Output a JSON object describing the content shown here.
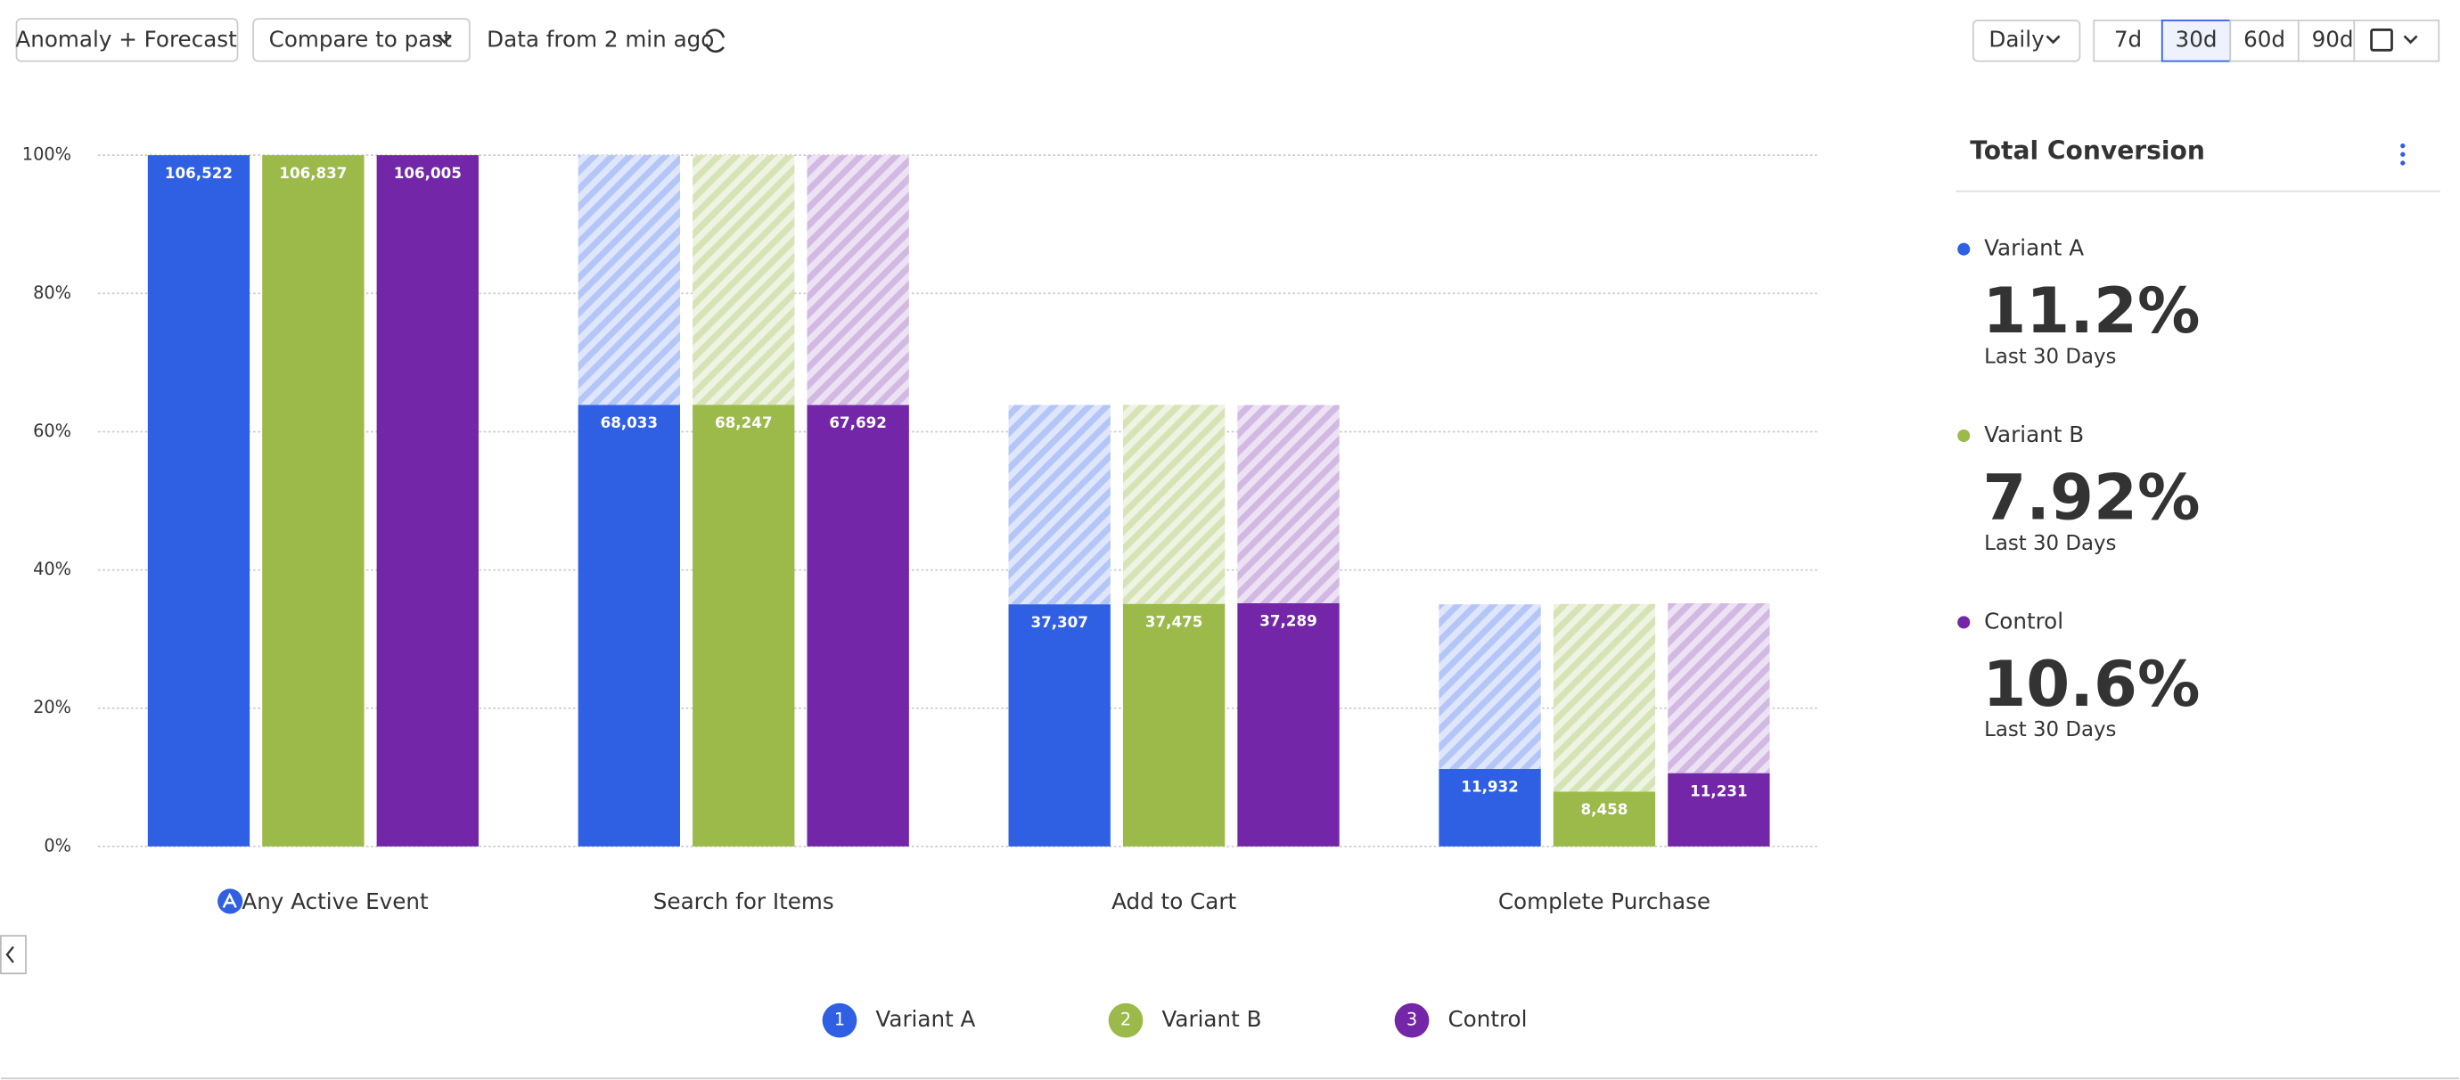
{
  "toolbar": {
    "anomaly": "Anomaly + Forecast",
    "compare": "Compare to past",
    "freshness": "Data from 2 min ago",
    "interval": "Daily",
    "ranges": [
      "7d",
      "30d",
      "60d",
      "90d"
    ],
    "selected_range": "30d"
  },
  "panel": {
    "title": "Total Conversion",
    "items": [
      {
        "name": "Variant A",
        "value": 11.2,
        "label": "11.2%",
        "period": "Last 30 Days",
        "color": "#2f5fe3"
      },
      {
        "name": "Variant B",
        "value": 7.92,
        "label": "7.92%",
        "period": "Last 30 Days",
        "color": "#9bba4a"
      },
      {
        "name": "Control",
        "value": 10.6,
        "label": "10.6%",
        "period": "Last 30 Days",
        "color": "#7326a8"
      }
    ]
  },
  "chart_data": {
    "type": "funnel",
    "categories": [
      "Any Active Event",
      "Search for Items",
      "Add to Cart",
      "Complete Purchase"
    ],
    "series": [
      {
        "name": "Variant A",
        "badge": "1",
        "color": "#2f5fe3",
        "values": [
          106522,
          68033,
          37307,
          11932
        ],
        "value_labels": [
          "106,522",
          "68,033",
          "37,307",
          "11,932"
        ]
      },
      {
        "name": "Variant B",
        "badge": "2",
        "color": "#9bba4a",
        "values": [
          106837,
          68247,
          37475,
          8458
        ],
        "value_labels": [
          "106,837",
          "68,247",
          "37,475",
          "8,458"
        ]
      },
      {
        "name": "Control",
        "badge": "3",
        "color": "#7326a8",
        "values": [
          106005,
          67692,
          37289,
          11231
        ],
        "value_labels": [
          "106,005",
          "67,692",
          "37,289",
          "11,231"
        ]
      }
    ],
    "ylim": [
      0,
      100
    ],
    "yticks": [
      {
        "value": 0,
        "label": "0%"
      },
      {
        "value": 20,
        "label": "20%"
      },
      {
        "value": 40,
        "label": "40%"
      },
      {
        "value": 60,
        "label": "60%"
      },
      {
        "value": 80,
        "label": "80%"
      },
      {
        "value": 100,
        "label": "100%"
      }
    ],
    "grid": true
  }
}
